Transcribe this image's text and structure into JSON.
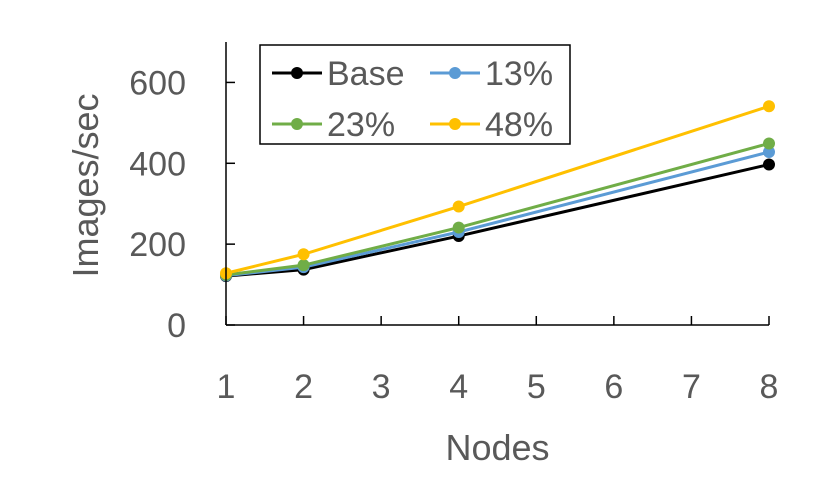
{
  "chart_data": {
    "type": "line",
    "xlabel": "Nodes",
    "ylabel": "Images/sec",
    "xlim": [
      1,
      8
    ],
    "ylim": [
      0,
      700
    ],
    "x_ticks": [
      "1",
      "2",
      "3",
      "4",
      "5",
      "6",
      "7",
      "8"
    ],
    "y_ticks": [
      "0",
      "200",
      "400",
      "600"
    ],
    "grid": false,
    "legend_position": "top-left",
    "series": [
      {
        "name": "Base",
        "color": "#000000",
        "x": [
          1,
          2,
          4,
          8
        ],
        "y": [
          121,
          137,
          220,
          397
        ]
      },
      {
        "name": "13%",
        "color": "#5b9bd5",
        "x": [
          1,
          2,
          4,
          8
        ],
        "y": [
          122,
          143,
          230,
          428
        ]
      },
      {
        "name": "23%",
        "color": "#70ad47",
        "x": [
          1,
          2,
          4,
          8
        ],
        "y": [
          124,
          148,
          241,
          449
        ]
      },
      {
        "name": "48%",
        "color": "#ffc000",
        "x": [
          1,
          2,
          4,
          8
        ],
        "y": [
          128,
          175,
          293,
          541
        ]
      }
    ]
  }
}
